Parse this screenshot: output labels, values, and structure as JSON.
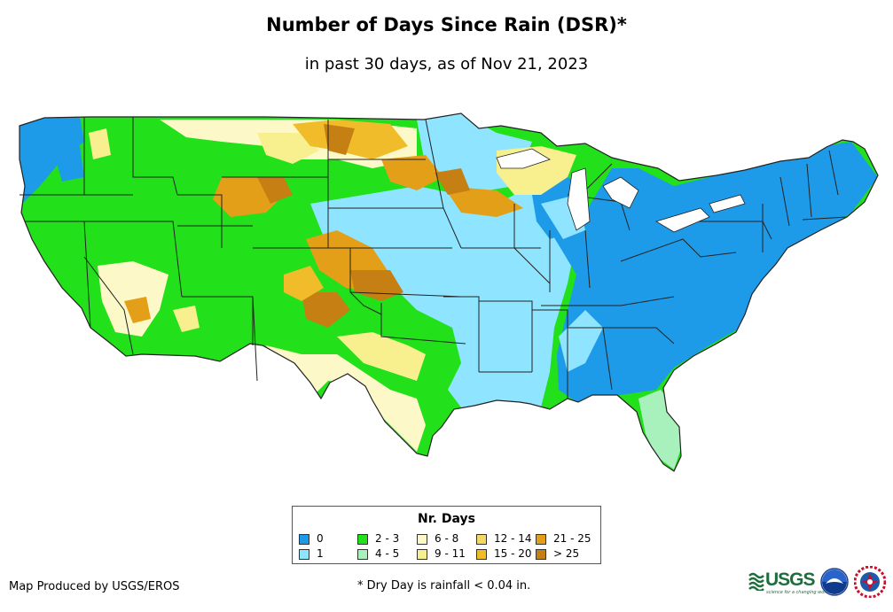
{
  "title": "Number of Days Since Rain (DSR)*",
  "subtitle": "in past 30 days, as of Nov 21, 2023",
  "legend": {
    "title": "Nr. Days",
    "items": [
      {
        "label": "0",
        "color": "#1e9be8"
      },
      {
        "label": "1",
        "color": "#8fe5ff"
      },
      {
        "label": "2 - 3",
        "color": "#22e01a"
      },
      {
        "label": "4 - 5",
        "color": "#a8f0bc"
      },
      {
        "label": "6 - 8",
        "color": "#fdf8c7"
      },
      {
        "label": "9 - 11",
        "color": "#f8ef8e"
      },
      {
        "label": "12 - 14",
        "color": "#f4d865"
      },
      {
        "label": "15 - 20",
        "color": "#f0bc2a"
      },
      {
        "label": "21 - 25",
        "color": "#e49f18"
      },
      {
        "label": "> 25",
        "color": "#c67f12"
      }
    ]
  },
  "credit": "Map Produced by USGS/EROS",
  "footnote": "* Dry Day is rainfall < 0.04 in.",
  "logos": {
    "usgs": {
      "text": "USGS",
      "tagline": "science for a changing world",
      "color": "#1d6e3d"
    },
    "noaa": {
      "name": "noaa-logo"
    },
    "nws": {
      "name": "national-weather-service-logo"
    }
  }
}
